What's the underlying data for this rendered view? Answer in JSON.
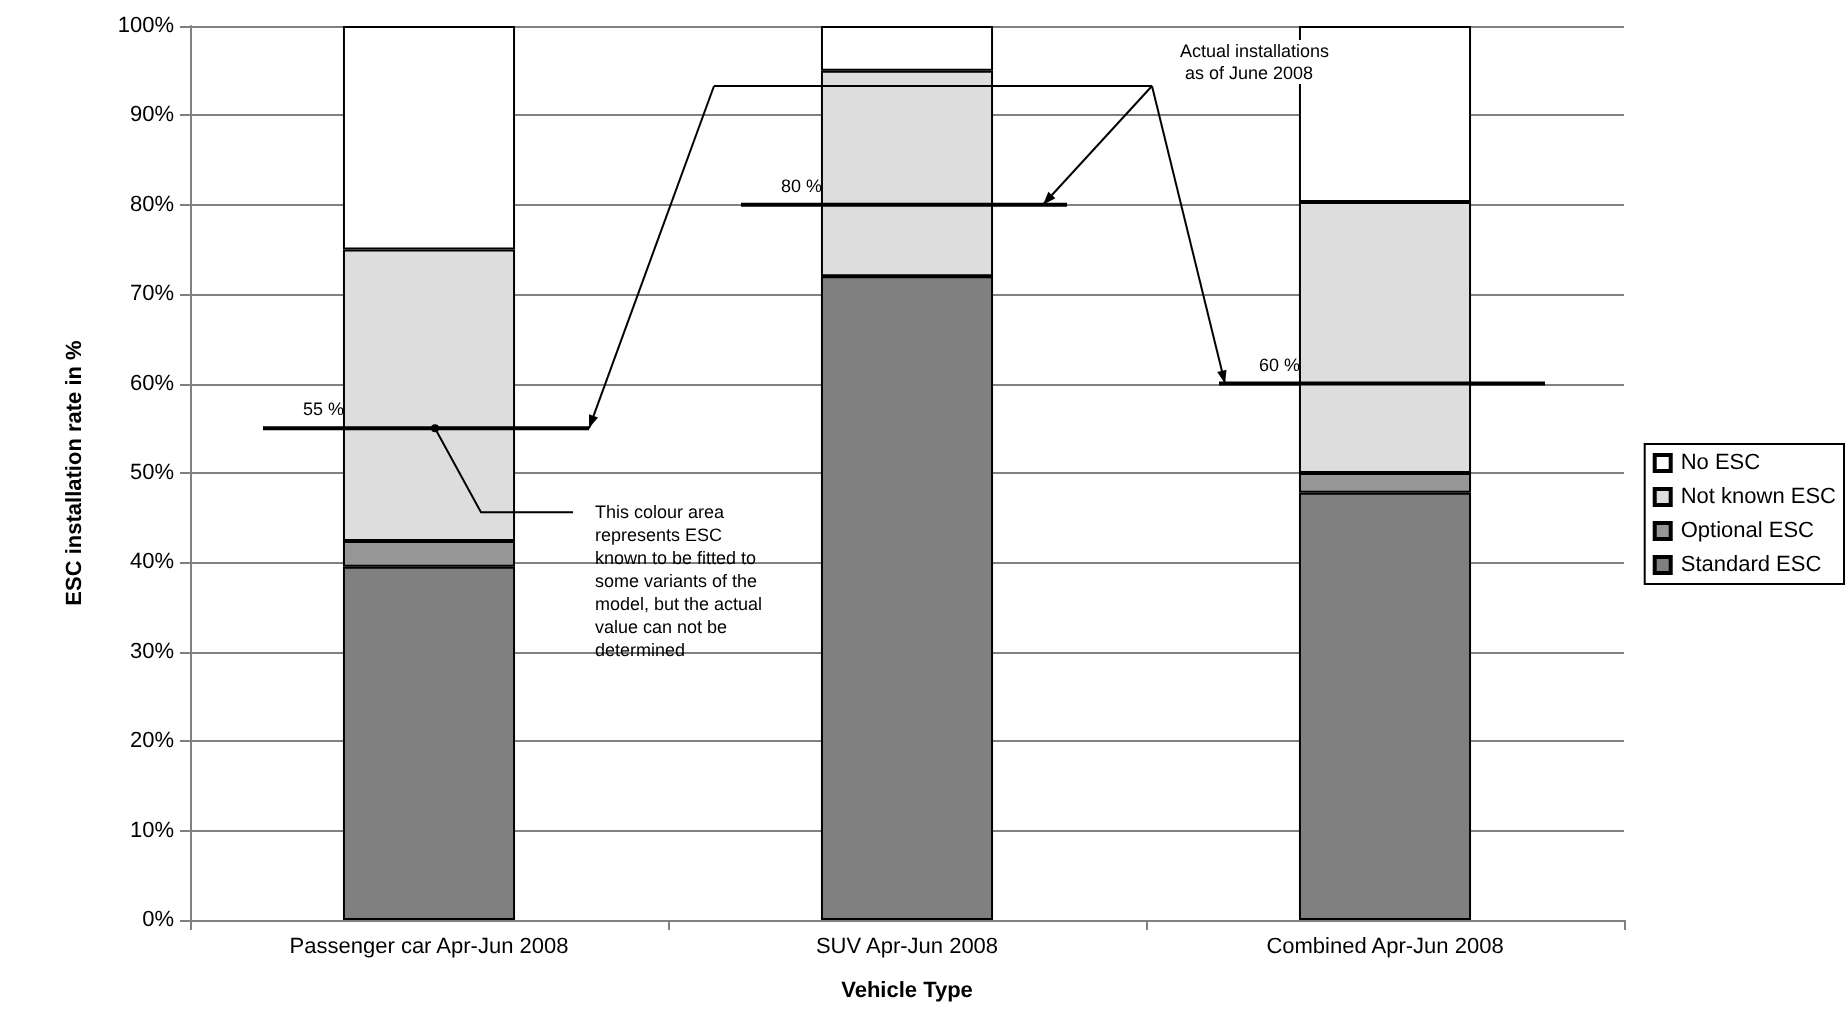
{
  "chart_data": {
    "type": "bar",
    "stacked": true,
    "xlabel": "Vehicle Type",
    "ylabel": "ESC installation rate in %",
    "categories": [
      "Passenger car Apr-Jun 2008",
      "SUV Apr-Jun 2008",
      "Combined Apr-Jun 2008"
    ],
    "series": [
      {
        "name": "Standard ESC",
        "color": "#808080",
        "values": [
          39.5,
          72,
          47.8
        ]
      },
      {
        "name": "Optional ESC",
        "color": "#969696",
        "values": [
          2.9,
          0,
          2.2
        ]
      },
      {
        "name": "Not known ESC",
        "color": "#dddddd",
        "values": [
          32.6,
          23,
          30.3
        ]
      },
      {
        "name": "No ESC",
        "color": "#ffffff",
        "values": [
          25,
          5,
          19.7
        ]
      }
    ],
    "ylim": [
      0,
      100
    ],
    "yticks": [
      {
        "value": 0,
        "label": "0%"
      },
      {
        "value": 10,
        "label": "10%"
      },
      {
        "value": 20,
        "label": "20%"
      },
      {
        "value": 30,
        "label": "30%"
      },
      {
        "value": 40,
        "label": "40%"
      },
      {
        "value": 50,
        "label": "50%"
      },
      {
        "value": 60,
        "label": "60%"
      },
      {
        "value": 70,
        "label": "70%"
      },
      {
        "value": 80,
        "label": "80%"
      },
      {
        "value": 90,
        "label": "90%"
      },
      {
        "value": 100,
        "label": "100%"
      }
    ],
    "grid": "y",
    "legend": "right",
    "ref_lines": [
      {
        "axis": "y",
        "value": 55,
        "label": "55 %",
        "color": "#000000"
      },
      {
        "axis": "y",
        "value": 80,
        "label": "80 %",
        "color": "#000000"
      },
      {
        "axis": "y",
        "value": 60,
        "label": "60 %",
        "color": "#000000"
      }
    ],
    "annotations": [
      "Actual installations as of June 2008",
      {
        "text": "This colour area represents ESC known to be fitted to some variants of the model, but the actual value can not be determined",
        "x": "Passenger car Apr-Jun 2008",
        "y": 55
      }
    ]
  }
}
